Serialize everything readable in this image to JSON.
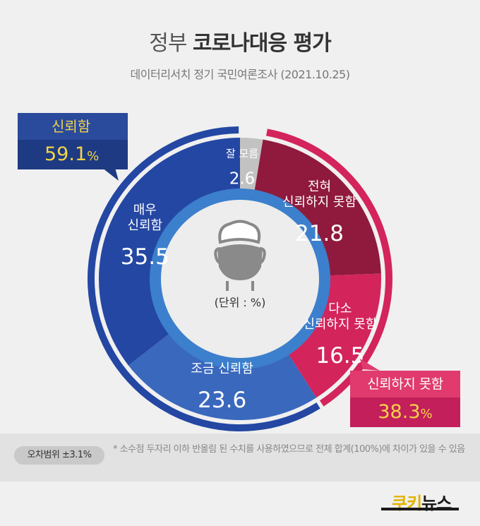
{
  "header": {
    "title_prefix": "정부",
    "title_bold": "코로나대응 평가",
    "subtitle": "데이터리서치 정기 국민여론조사 (2021.10.25)"
  },
  "chart_data": {
    "type": "pie",
    "unit_label": "(단위 : %)",
    "slices": [
      {
        "label": "잘 모름",
        "value": 2.6,
        "color": "#c2c2c2"
      },
      {
        "label": "전혀 신뢰하지 못함",
        "value": 21.8,
        "color": "#8f1a3d"
      },
      {
        "label": "다소 신뢰하지 못함",
        "value": 16.5,
        "color": "#d3245c"
      },
      {
        "label": "조금 신뢰함",
        "value": 23.6,
        "color": "#3a68bd"
      },
      {
        "label": "매우 신뢰함",
        "value": 35.5,
        "color": "#2447a3"
      }
    ],
    "groups": [
      {
        "label": "신뢰함",
        "value": "59.1",
        "unit": "%",
        "color": "#2447a3"
      },
      {
        "label": "신뢰하지 못함",
        "value": "38.3",
        "unit": "%",
        "color": "#d3245c"
      }
    ]
  },
  "notes": {
    "margin_of_error": "오차범위 ±3.1%",
    "footnote": "* 소수점 두자리 이하 반올림 된 수치를 사용하였으므로 전체 합계(100%)에 차이가 있을 수 있음"
  },
  "logo": {
    "part1": "쿠키",
    "part2": "뉴스"
  }
}
